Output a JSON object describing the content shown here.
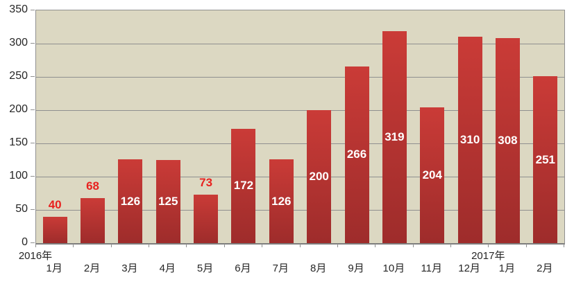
{
  "chart_data": {
    "type": "bar",
    "title": "",
    "xlabel": "",
    "ylabel": "",
    "categories": [
      "1月",
      "2月",
      "3月",
      "4月",
      "5月",
      "6月",
      "7月",
      "8月",
      "9月",
      "10月",
      "11月",
      "12月",
      "1月",
      "2月"
    ],
    "values": [
      40,
      68,
      126,
      125,
      73,
      172,
      126,
      200,
      266,
      319,
      204,
      310,
      308,
      251
    ],
    "data_label_placement": [
      "above",
      "above",
      "inside",
      "inside",
      "above",
      "inside",
      "inside",
      "inside",
      "inside",
      "inside",
      "inside",
      "inside",
      "inside",
      "inside"
    ],
    "year_labels": [
      {
        "text": "2016年",
        "category_index": 0
      },
      {
        "text": "2017年",
        "category_index": 12
      }
    ],
    "ylim": [
      0,
      350
    ],
    "ytick_step": 50,
    "ytick_labels": [
      "0",
      "50",
      "100",
      "150",
      "200",
      "250",
      "300",
      "350"
    ],
    "grid": true,
    "legend_position": "none",
    "colors": {
      "bar_gradient_top": "#ca3b37",
      "bar_gradient_bottom": "#9e2c2b",
      "data_label_inside": "#ffffff",
      "data_label_above": "#e8211f",
      "plot_background": "#dcd8c2",
      "gridline": "#8f8f8f",
      "axis_text": "#262626",
      "page_background": "#ffffff"
    }
  }
}
